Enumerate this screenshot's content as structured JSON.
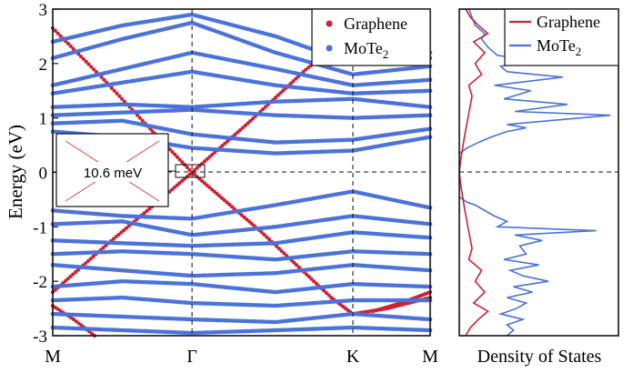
{
  "colors": {
    "graphene": "#cc2233",
    "mote2": "#4a72d8",
    "axis": "#111111",
    "zoom_line": "#e04050"
  },
  "chart_data": [
    {
      "type": "scatter",
      "ylabel": "Energy (eV)",
      "ylim": [
        -3,
        3
      ],
      "yticks": [
        "-3",
        "-2",
        "-1",
        "0",
        "1",
        "2",
        "3"
      ],
      "kpoints": [
        {
          "label": "M",
          "pos": 0
        },
        {
          "label": "Γ",
          "pos": 1
        },
        {
          "label": "K",
          "pos": 2.155
        },
        {
          "label": "M",
          "pos": 2.71
        }
      ],
      "legend": {
        "placement": "top-right",
        "entries": [
          {
            "name": "Graphene"
          },
          {
            "name": "MoTe",
            "sub": "2"
          }
        ]
      },
      "inset": {
        "label": "10.6 meV"
      },
      "series": [
        {
          "name": "Graphene",
          "bands": [
            [
              [
                0,
                2.65
              ],
              [
                0.35,
                1.75
              ],
              [
                0.7,
                0.8
              ],
              [
                1.0,
                0.0
              ],
              [
                1.5,
                -1.1
              ],
              [
                2.0,
                -2.3
              ],
              [
                2.155,
                -2.6
              ],
              [
                2.4,
                -2.5
              ],
              [
                2.71,
                -2.3
              ]
            ],
            [
              [
                0,
                -2.2
              ],
              [
                0.4,
                -1.3
              ],
              [
                0.75,
                -0.55
              ],
              [
                1.0,
                0.0
              ],
              [
                1.4,
                0.9
              ],
              [
                1.8,
                1.85
              ],
              [
                2.155,
                2.6
              ],
              [
                2.4,
                2.3
              ],
              [
                2.71,
                2.1
              ]
            ],
            [
              [
                0,
                -2.45
              ],
              [
                0.15,
                -2.7
              ],
              [
                0.3,
                -3.0
              ]
            ],
            [
              [
                2.3,
                -2.55
              ],
              [
                2.5,
                -2.4
              ],
              [
                2.71,
                -2.2
              ]
            ]
          ]
        },
        {
          "name": "MoTe2",
          "bands": [
            [
              [
                0,
                1.05
              ],
              [
                0.5,
                1.1
              ],
              [
                1.0,
                1.15
              ],
              [
                1.6,
                1.05
              ],
              [
                2.155,
                1.0
              ],
              [
                2.71,
                1.05
              ]
            ],
            [
              [
                0,
                1.2
              ],
              [
                0.5,
                1.25
              ],
              [
                1.0,
                1.2
              ],
              [
                1.6,
                1.3
              ],
              [
                2.155,
                1.35
              ],
              [
                2.71,
                1.2
              ]
            ],
            [
              [
                0,
                1.6
              ],
              [
                0.5,
                1.9
              ],
              [
                1.0,
                2.2
              ],
              [
                1.6,
                1.9
              ],
              [
                2.155,
                1.6
              ],
              [
                2.71,
                1.7
              ]
            ],
            [
              [
                0,
                2.1
              ],
              [
                0.5,
                2.45
              ],
              [
                1.0,
                2.75
              ],
              [
                1.6,
                2.2
              ],
              [
                2.155,
                1.8
              ],
              [
                2.71,
                1.95
              ]
            ],
            [
              [
                0,
                2.4
              ],
              [
                0.5,
                2.7
              ],
              [
                1.0,
                2.9
              ],
              [
                1.6,
                2.5
              ],
              [
                2.155,
                2.0
              ],
              [
                2.71,
                2.2
              ]
            ],
            [
              [
                0,
                1.45
              ],
              [
                0.5,
                1.65
              ],
              [
                1.0,
                1.85
              ],
              [
                1.6,
                1.6
              ],
              [
                2.155,
                1.45
              ],
              [
                2.71,
                1.5
              ]
            ],
            [
              [
                0,
                0.9
              ],
              [
                0.5,
                0.95
              ],
              [
                1.0,
                0.7
              ],
              [
                1.6,
                0.55
              ],
              [
                2.155,
                0.6
              ],
              [
                2.71,
                0.8
              ]
            ],
            [
              [
                0,
                0.75
              ],
              [
                0.5,
                0.65
              ],
              [
                1.0,
                0.45
              ],
              [
                1.6,
                0.35
              ],
              [
                2.155,
                0.4
              ],
              [
                2.71,
                0.65
              ]
            ],
            [
              [
                0,
                -0.7
              ],
              [
                0.5,
                -0.8
              ],
              [
                1.0,
                -0.85
              ],
              [
                1.6,
                -0.6
              ],
              [
                2.155,
                -0.35
              ],
              [
                2.71,
                -0.65
              ]
            ],
            [
              [
                0,
                -0.95
              ],
              [
                0.5,
                -0.9
              ],
              [
                1.0,
                -1.15
              ],
              [
                1.6,
                -1.0
              ],
              [
                2.155,
                -0.8
              ],
              [
                2.71,
                -0.95
              ]
            ],
            [
              [
                0,
                -1.25
              ],
              [
                0.5,
                -1.3
              ],
              [
                1.0,
                -1.35
              ],
              [
                1.6,
                -1.3
              ],
              [
                2.155,
                -1.1
              ],
              [
                2.71,
                -1.2
              ]
            ],
            [
              [
                0,
                -1.5
              ],
              [
                0.5,
                -1.45
              ],
              [
                1.0,
                -1.5
              ],
              [
                1.6,
                -1.6
              ],
              [
                2.155,
                -1.45
              ],
              [
                2.71,
                -1.5
              ]
            ],
            [
              [
                0,
                -1.7
              ],
              [
                0.5,
                -1.8
              ],
              [
                1.0,
                -1.9
              ],
              [
                1.6,
                -1.85
              ],
              [
                2.155,
                -1.7
              ],
              [
                2.71,
                -1.8
              ]
            ],
            [
              [
                0,
                -2.1
              ],
              [
                0.5,
                -2.0
              ],
              [
                1.0,
                -2.05
              ],
              [
                1.6,
                -2.2
              ],
              [
                2.155,
                -2.05
              ],
              [
                2.71,
                -2.1
              ]
            ],
            [
              [
                0,
                -2.35
              ],
              [
                0.5,
                -2.3
              ],
              [
                1.0,
                -2.4
              ],
              [
                1.6,
                -2.45
              ],
              [
                2.155,
                -2.35
              ],
              [
                2.71,
                -2.35
              ]
            ],
            [
              [
                0,
                -2.6
              ],
              [
                0.5,
                -2.65
              ],
              [
                1.0,
                -2.7
              ],
              [
                1.6,
                -2.75
              ],
              [
                2.155,
                -2.6
              ],
              [
                2.71,
                -2.7
              ]
            ],
            [
              [
                0,
                -2.85
              ],
              [
                0.5,
                -2.9
              ],
              [
                1.0,
                -2.95
              ],
              [
                1.6,
                -2.9
              ],
              [
                2.155,
                -2.85
              ],
              [
                2.71,
                -2.9
              ]
            ]
          ]
        }
      ]
    },
    {
      "type": "line",
      "xlabel": "Density of States",
      "ylim": [
        -3,
        3
      ],
      "legend": {
        "placement": "top-right",
        "entries": [
          {
            "name": "Graphene"
          },
          {
            "name": "MoTe",
            "sub": "2"
          }
        ]
      },
      "series": [
        {
          "name": "Graphene",
          "points": [
            [
              0.0,
              0.0
            ],
            [
              0.1,
              0.25
            ],
            [
              0.35,
              0.7
            ],
            [
              0.8,
              1.4
            ],
            [
              0.6,
              1.6
            ],
            [
              1.4,
              1.8
            ],
            [
              1.0,
              2.0
            ],
            [
              1.6,
              2.2
            ],
            [
              0.9,
              2.4
            ],
            [
              1.8,
              2.55
            ],
            [
              1.2,
              2.7
            ],
            [
              0.7,
              2.85
            ],
            [
              0.4,
              3.0
            ],
            [
              0.0,
              0.0
            ],
            [
              0.1,
              -0.25
            ],
            [
              0.35,
              -0.7
            ],
            [
              0.8,
              -1.4
            ],
            [
              0.6,
              -1.6
            ],
            [
              1.4,
              -1.8
            ],
            [
              1.0,
              -2.0
            ],
            [
              1.6,
              -2.2
            ],
            [
              0.9,
              -2.4
            ],
            [
              1.8,
              -2.55
            ],
            [
              1.2,
              -2.7
            ],
            [
              0.7,
              -2.85
            ],
            [
              0.4,
              -3.0
            ]
          ]
        },
        {
          "name": "MoTe2",
          "points": [
            [
              0,
              -0.45
            ],
            [
              0.5,
              -0.55
            ],
            [
              1.0,
              -0.6
            ],
            [
              1.6,
              -0.7
            ],
            [
              2.2,
              -0.8
            ],
            [
              3.0,
              -0.9
            ],
            [
              2.4,
              -1.0
            ],
            [
              8.6,
              -1.07
            ],
            [
              3.5,
              -1.15
            ],
            [
              5.2,
              -1.25
            ],
            [
              3.8,
              -1.35
            ],
            [
              4.2,
              -1.5
            ],
            [
              2.8,
              -1.6
            ],
            [
              5.0,
              -1.7
            ],
            [
              3.2,
              -1.8
            ],
            [
              4.0,
              -1.9
            ],
            [
              5.6,
              -2.0
            ],
            [
              3.4,
              -2.1
            ],
            [
              4.6,
              -2.2
            ],
            [
              3.0,
              -2.3
            ],
            [
              4.2,
              -2.4
            ],
            [
              3.6,
              -2.5
            ],
            [
              2.6,
              -2.6
            ],
            [
              4.0,
              -2.7
            ],
            [
              3.0,
              -2.8
            ],
            [
              3.4,
              -2.9
            ],
            [
              3.0,
              -3.0
            ]
          ],
          "upper": [
            [
              0,
              0.35
            ],
            [
              0.5,
              0.45
            ],
            [
              1.2,
              0.55
            ],
            [
              2.0,
              0.65
            ],
            [
              3.0,
              0.75
            ],
            [
              4.2,
              0.82
            ],
            [
              3.0,
              0.88
            ],
            [
              9.5,
              1.05
            ],
            [
              3.5,
              1.12
            ],
            [
              6.8,
              1.25
            ],
            [
              2.8,
              1.35
            ],
            [
              4.5,
              1.5
            ],
            [
              2.2,
              1.6
            ],
            [
              6.5,
              1.75
            ],
            [
              3.0,
              1.85
            ],
            [
              2.6,
              1.95
            ],
            [
              4.8,
              2.05
            ],
            [
              2.4,
              2.15
            ],
            [
              1.8,
              2.3
            ],
            [
              1.4,
              2.45
            ],
            [
              1.6,
              2.55
            ],
            [
              1.0,
              2.7
            ],
            [
              0.8,
              2.85
            ],
            [
              0.6,
              3.0
            ]
          ]
        }
      ]
    }
  ]
}
